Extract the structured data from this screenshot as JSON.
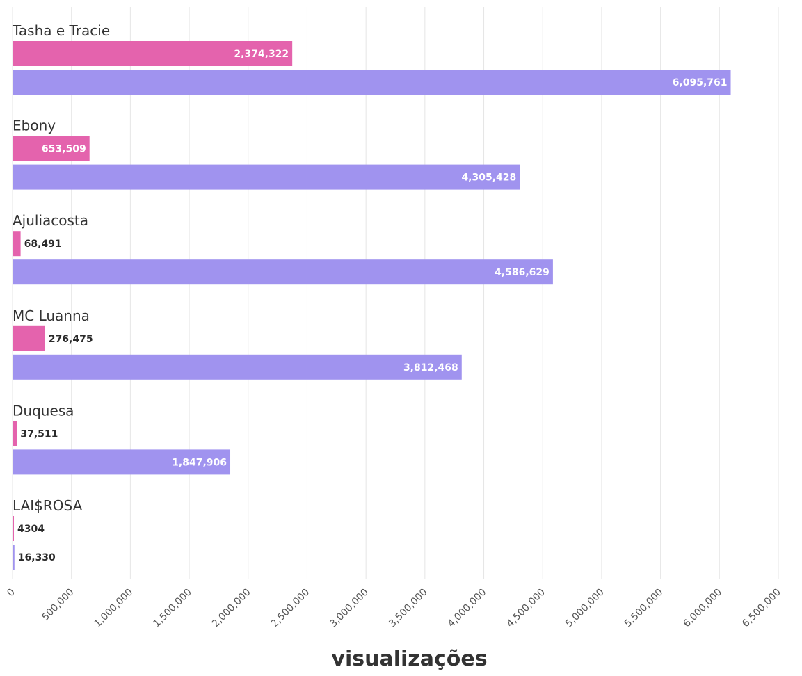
{
  "chart_data": {
    "type": "bar",
    "orientation": "horizontal",
    "categories": [
      "Tasha e Tracie",
      "Ebony",
      "Ajuliacosta",
      "MC Luanna",
      "Duquesa",
      "LAI$ROSA"
    ],
    "series": [
      {
        "color": "#e463ad",
        "values": [
          2374322,
          653509,
          68491,
          276475,
          37511,
          4304
        ],
        "labels": [
          "2,374,322",
          "653,509",
          "68,491",
          "276,475",
          "37,511",
          "4304"
        ]
      },
      {
        "color": "#a093ef",
        "values": [
          6095761,
          4305428,
          4586629,
          3812468,
          1847906,
          16330
        ],
        "labels": [
          "6,095,761",
          "4,305,428",
          "4,586,629",
          "3,812,468",
          "1,847,906",
          "16,330"
        ]
      }
    ],
    "xlabel": "visualizações",
    "xlim": [
      0,
      6500000
    ],
    "xticks": [
      0,
      500000,
      1000000,
      1500000,
      2000000,
      2500000,
      3000000,
      3500000,
      4000000,
      4500000,
      5000000,
      5500000,
      6000000,
      6500000
    ],
    "xtick_labels": [
      "0",
      "500,000",
      "1,000,000",
      "1,500,000",
      "2,000,000",
      "2,500,000",
      "3,000,000",
      "3,500,000",
      "4,000,000",
      "4,500,000",
      "5,000,000",
      "5,500,000",
      "6,000,000",
      "6,500,000"
    ],
    "grid": true,
    "legend": "none"
  }
}
